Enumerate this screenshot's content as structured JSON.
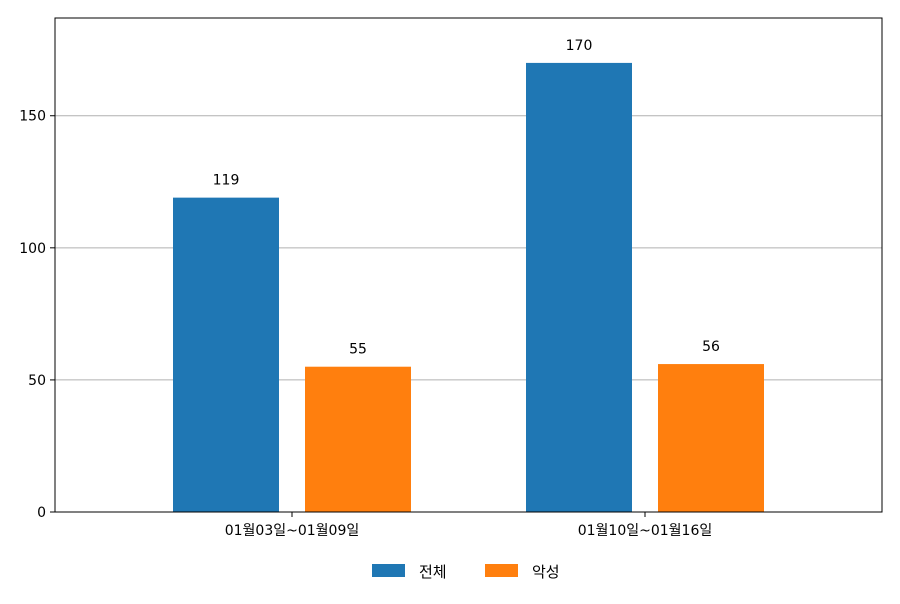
{
  "chart_data": {
    "type": "bar",
    "categories": [
      "01월03일~01월09일",
      "01월10일~01월16일"
    ],
    "series": [
      {
        "name": "전체",
        "values": [
          119,
          170
        ],
        "color": "#1f77b4"
      },
      {
        "name": "악성",
        "values": [
          55,
          56
        ],
        "color": "#ff7f0e"
      }
    ],
    "ylim": [
      0,
      187
    ],
    "yticks": [
      0,
      50,
      100,
      150
    ],
    "grid": "y",
    "legend": "bottom-center",
    "data_labels": true
  }
}
